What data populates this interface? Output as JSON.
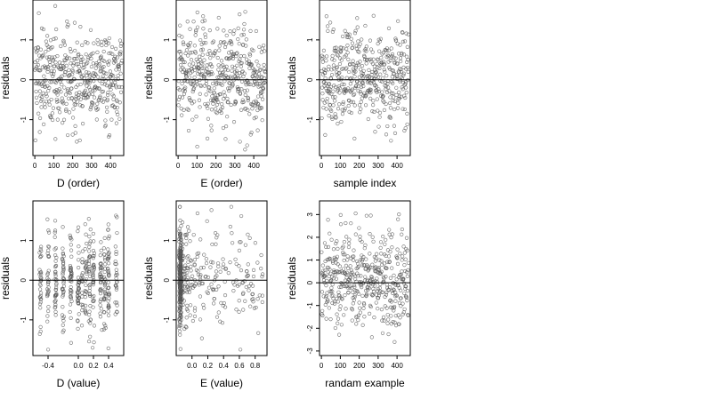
{
  "figure": {
    "ylabel": "residuals"
  },
  "chart_data": [
    {
      "id": "p1",
      "type": "scatter",
      "xlabel": "D (order)",
      "ylabel": "residuals",
      "xlim": [
        -10,
        470
      ],
      "ylim": [
        -1.9,
        2.0
      ],
      "xticks": [
        0,
        100,
        200,
        300,
        400
      ],
      "xtick_labels": [
        "0",
        "100",
        "200",
        "300",
        "400"
      ],
      "yticks": [
        -1,
        0,
        1
      ],
      "ytick_labels": [
        "-1",
        "0",
        "1"
      ],
      "hline": 0,
      "n_points": 460,
      "x_range": [
        1,
        460
      ],
      "x_kind": "index",
      "y_dist": {
        "mean": 0.05,
        "sd": 0.62,
        "min": -1.75,
        "max": 1.85
      }
    },
    {
      "id": "p2",
      "type": "scatter",
      "xlabel": "E (order)",
      "ylabel": "residuals",
      "xlim": [
        -10,
        470
      ],
      "ylim": [
        -1.9,
        2.0
      ],
      "xticks": [
        0,
        100,
        200,
        300,
        400
      ],
      "xtick_labels": [
        "0",
        "100",
        "200",
        "300",
        "400"
      ],
      "yticks": [
        -1,
        0,
        1
      ],
      "ytick_labels": [
        "-1",
        "0",
        "1"
      ],
      "hline": 0,
      "n_points": 460,
      "x_range": [
        1,
        460
      ],
      "x_kind": "index",
      "y_dist": {
        "mean": 0.05,
        "sd": 0.62,
        "min": -1.75,
        "max": 1.85
      }
    },
    {
      "id": "p3",
      "type": "scatter",
      "xlabel": "sample index",
      "ylabel": "residuals",
      "xlim": [
        -10,
        470
      ],
      "ylim": [
        -1.9,
        2.0
      ],
      "xticks": [
        0,
        100,
        200,
        300,
        400
      ],
      "xtick_labels": [
        "0",
        "100",
        "200",
        "300",
        "400"
      ],
      "yticks": [
        -1,
        0,
        1
      ],
      "ytick_labels": [
        "-1",
        "0",
        "1"
      ],
      "hline": 0,
      "n_points": 460,
      "x_range": [
        1,
        460
      ],
      "x_kind": "index",
      "y_dist": {
        "mean": 0.05,
        "sd": 0.62,
        "min": -1.75,
        "max": 1.85
      }
    },
    {
      "id": "p4",
      "type": "scatter",
      "xlabel": "D (value)",
      "ylabel": "residuals",
      "xlim": [
        -0.6,
        0.6
      ],
      "ylim": [
        -1.9,
        2.0
      ],
      "xticks": [
        -0.4,
        0.0,
        0.2,
        0.4
      ],
      "xtick_labels": [
        "-0.4",
        "0.0",
        "0.2",
        "0.4"
      ],
      "yticks": [
        -1,
        0,
        1
      ],
      "ytick_labels": [
        "-1",
        "0",
        "1"
      ],
      "hline": 0,
      "n_points": 460,
      "x_kind": "clustered",
      "x_clusters": [
        -0.5,
        -0.4,
        -0.3,
        -0.2,
        -0.1,
        0.0,
        0.05,
        0.1,
        0.15,
        0.2,
        0.3,
        0.35,
        0.4,
        0.5
      ],
      "y_dist": {
        "mean": 0.05,
        "sd": 0.62,
        "min": -1.75,
        "max": 1.85
      }
    },
    {
      "id": "p5",
      "type": "scatter",
      "xlabel": "E (value)",
      "ylabel": "residuals",
      "xlim": [
        -0.2,
        0.95
      ],
      "ylim": [
        -1.9,
        2.0
      ],
      "xticks": [
        0.0,
        0.2,
        0.4,
        0.6,
        0.8
      ],
      "xtick_labels": [
        "0.0",
        "0.2",
        "0.4",
        "0.6",
        "0.8"
      ],
      "yticks": [
        -1,
        0,
        1
      ],
      "ytick_labels": [
        "-1",
        "0",
        "1"
      ],
      "hline": 0,
      "n_points": 460,
      "x_kind": "skewed",
      "x_dense_value": -0.15,
      "x_tail_max": 0.9,
      "y_dist": {
        "mean": 0.05,
        "sd": 0.62,
        "min": -1.75,
        "max": 1.85
      }
    },
    {
      "id": "p6",
      "type": "scatter",
      "xlabel": "randam example",
      "ylabel": "residuals",
      "xlim": [
        -10,
        470
      ],
      "ylim": [
        -3.2,
        3.6
      ],
      "xticks": [
        0,
        100,
        200,
        300,
        400
      ],
      "xtick_labels": [
        "0",
        "100",
        "200",
        "300",
        "400"
      ],
      "yticks": [
        -3,
        -2,
        -1,
        0,
        1,
        2,
        3
      ],
      "ytick_labels": [
        "-3",
        "-2",
        "-1",
        "0",
        "1",
        "2",
        "3"
      ],
      "hline": 0,
      "n_points": 460,
      "x_range": [
        1,
        460
      ],
      "x_kind": "index",
      "y_dist": {
        "mean": 0.1,
        "sd": 1.0,
        "min": -2.9,
        "max": 3.3
      }
    }
  ]
}
